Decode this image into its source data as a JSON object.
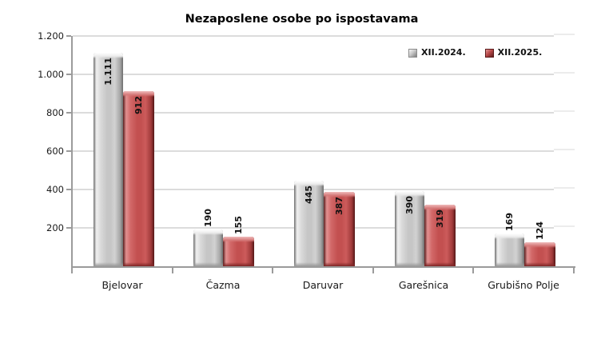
{
  "chart_data": {
    "type": "bar",
    "title": "Nezaposlene osobe po ispostavama",
    "categories": [
      "Bjelovar",
      "Čazma",
      "Daruvar",
      "Garešnica",
      "Grubišno Polje"
    ],
    "series": [
      {
        "name": "XII.2024.",
        "color": "#c6c6c6",
        "values": [
          1111,
          190,
          445,
          390,
          169
        ],
        "value_labels": [
          "1.111",
          "190",
          "445",
          "390",
          "169"
        ]
      },
      {
        "name": "XII.2025.",
        "color": "#c35050",
        "values": [
          912,
          155,
          387,
          319,
          124
        ],
        "value_labels": [
          "912",
          "155",
          "387",
          "319",
          "124"
        ]
      }
    ],
    "y_ticks": [
      {
        "value": 200,
        "label": "200"
      },
      {
        "value": 400,
        "label": "400"
      },
      {
        "value": 600,
        "label": "600"
      },
      {
        "value": 800,
        "label": "800"
      },
      {
        "value": 1000,
        "label": "1.000"
      },
      {
        "value": 1200,
        "label": "1.200"
      }
    ],
    "ylim": [
      0,
      1200
    ],
    "grid": true,
    "legend_position": "top-right",
    "axis_color": "#9b9b9b",
    "gridline_color": "#dcdcdc",
    "value_label_orientation": "vertical"
  }
}
